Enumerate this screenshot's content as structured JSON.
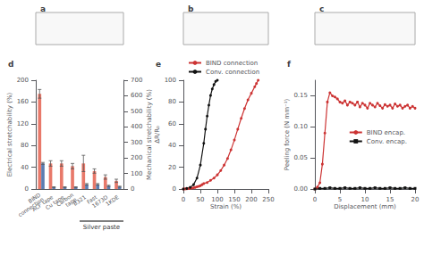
{
  "chart_data": [
    {
      "type": "blank",
      "title": "a",
      "tick_labels": false
    },
    {
      "type": "blank",
      "title": "b",
      "tick_labels": false
    },
    {
      "type": "blank",
      "title": "c",
      "tick_labels": false
    },
    {
      "type": "bar",
      "title": "d",
      "categories": [
        "BIND\nconnection",
        "ACF tape",
        "Cu tape",
        "Carbon\ntape",
        "B321",
        "Fast",
        "1673D",
        "1KDE"
      ],
      "ylabel": "Electrical stretchability (%)",
      "y2label": "Mechanical stretchability (%)",
      "ylim": [
        0,
        200
      ],
      "yticks": [
        0,
        40,
        80,
        120,
        160,
        200
      ],
      "y2lim": [
        0,
        700
      ],
      "y2ticks": [
        0,
        100,
        200,
        300,
        400,
        500,
        600,
        700
      ],
      "grid": false,
      "series": [
        {
          "color": "#e8796a",
          "values": [
            175,
            47,
            47,
            42,
            47,
            33,
            22,
            15
          ],
          "errors": [
            8,
            5,
            5,
            5,
            15,
            4,
            4,
            3
          ]
        },
        {
          "color": "#5b7db1",
          "values": [
            165,
            12,
            12,
            12,
            30,
            30,
            20,
            15
          ],
          "errors": [
            6,
            2,
            2,
            2,
            5,
            5,
            4,
            3
          ],
          "axis": "y2"
        }
      ],
      "annotations": [
        {
          "text": "Silver paste",
          "from": "B321",
          "to": "1KDE"
        }
      ]
    },
    {
      "type": "line",
      "title": "e",
      "xlabel": "Strain (%)",
      "ylabel": "ΔR/R₀",
      "xlim": [
        0,
        250
      ],
      "xticks": [
        0,
        50,
        100,
        150,
        200,
        250
      ],
      "ylim": [
        0,
        100
      ],
      "yticks": [
        0,
        20,
        40,
        60,
        80,
        100
      ],
      "grid": false,
      "legend": "upper left",
      "series": [
        {
          "name": "BIND connection",
          "color": "#cc3333",
          "marker": "circle",
          "x": [
            0,
            5,
            10,
            15,
            20,
            25,
            30,
            35,
            40,
            45,
            50,
            55,
            60,
            70,
            80,
            90,
            100,
            110,
            120,
            130,
            140,
            150,
            160,
            170,
            180,
            190,
            200,
            210,
            215,
            220
          ],
          "values": [
            0,
            0.1,
            0.2,
            0.4,
            0.6,
            0.8,
            1.0,
            1.5,
            2,
            2.5,
            3,
            4,
            5,
            6,
            8,
            10,
            13,
            17,
            22,
            28,
            36,
            45,
            55,
            65,
            74,
            82,
            88,
            94,
            97,
            100
          ]
        },
        {
          "name": "Conv. connection",
          "color": "#111111",
          "marker": "circle",
          "x": [
            0,
            10,
            20,
            30,
            40,
            50,
            60,
            65,
            70,
            75,
            80,
            85,
            90,
            95,
            100
          ],
          "values": [
            0,
            0.5,
            1.5,
            4,
            10,
            22,
            42,
            55,
            67,
            77,
            86,
            92,
            96,
            99,
            100
          ]
        }
      ]
    },
    {
      "type": "line",
      "title": "f",
      "xlabel": "Displacement (mm)",
      "ylabel": "Peeling force (N mm⁻¹)",
      "xlim": [
        0,
        20
      ],
      "xticks": [
        0,
        5,
        10,
        15,
        20
      ],
      "ylim": [
        0,
        0.175
      ],
      "yticks": [
        {
          "value": 0,
          "label": "0.00"
        },
        0.05,
        {
          "value": 0.1,
          "label": "0.10"
        },
        0.15
      ],
      "grid": false,
      "legend": "center right",
      "series": [
        {
          "name": "BIND encap.",
          "color": "#cc3333",
          "marker": "circle",
          "x": [
            0,
            0.5,
            1.0,
            1.5,
            2.0,
            2.5,
            3.0,
            3.5,
            4.0,
            4.5,
            5.0,
            5.5,
            6.0,
            6.5,
            7.0,
            7.5,
            8.0,
            8.5,
            9.0,
            9.5,
            10.0,
            10.5,
            11.0,
            11.5,
            12.0,
            12.5,
            13.0,
            13.5,
            14.0,
            14.5,
            15.0,
            15.5,
            16.0,
            16.5,
            17.0,
            17.5,
            18.0,
            18.5,
            19.0,
            19.5,
            20.0
          ],
          "values": [
            0,
            0.003,
            0.01,
            0.04,
            0.09,
            0.14,
            0.155,
            0.15,
            0.148,
            0.145,
            0.14,
            0.138,
            0.142,
            0.135,
            0.14,
            0.138,
            0.135,
            0.14,
            0.132,
            0.138,
            0.135,
            0.13,
            0.138,
            0.135,
            0.132,
            0.138,
            0.134,
            0.13,
            0.136,
            0.133,
            0.135,
            0.13,
            0.137,
            0.133,
            0.135,
            0.13,
            0.133,
            0.135,
            0.13,
            0.133,
            0.13
          ]
        },
        {
          "name": "Conv. encap.",
          "color": "#111111",
          "marker": "square",
          "x": [
            0,
            1,
            2,
            3,
            4,
            5,
            6,
            7,
            8,
            9,
            10,
            11,
            12,
            13,
            14,
            15,
            16,
            17,
            18,
            19,
            20
          ],
          "values": [
            0,
            0.001,
            0.001,
            0.002,
            0.001,
            0.001,
            0.002,
            0.001,
            0.001,
            0.002,
            0.001,
            0.001,
            0.002,
            0.001,
            0.001,
            0.002,
            0.001,
            0.001,
            0.002,
            0.001,
            0.001
          ]
        }
      ]
    }
  ]
}
